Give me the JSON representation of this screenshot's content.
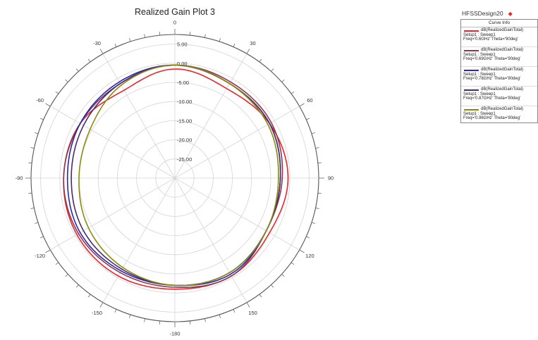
{
  "chart_data": {
    "type": "polar-line",
    "title": "Realized Gain Plot 3",
    "angle_ticks": [
      0,
      30,
      60,
      90,
      120,
      150,
      -180,
      -150,
      -120,
      -90,
      -60,
      -30
    ],
    "radial_range_db": [
      -30,
      7.5
    ],
    "radial_tick_labels": [
      "5.00",
      "0.00",
      "-5.00",
      "-10.00",
      "-15.00",
      "-20.00",
      "-25.00"
    ],
    "radial_tick_values": [
      5,
      0,
      -5,
      -10,
      -15,
      -20,
      -25
    ],
    "theta_sample_deg": [
      -180,
      -150,
      -120,
      -90,
      -60,
      -30,
      0,
      30,
      60,
      90,
      120,
      150
    ],
    "series": [
      {
        "name": "dB(RealizedGainTotal)",
        "setup": "Setup1 : Sweep1",
        "freq": "Freq='0.6GHz' Theta='90deg'",
        "color": "#e8262d",
        "values": [
          -1.0,
          -0.5,
          -0.5,
          -1.0,
          -1.5,
          -3.5,
          -1.5,
          -3.0,
          -1.5,
          -0.5,
          -1.5,
          -0.5
        ]
      },
      {
        "name": "dB(RealizedGainTotal)",
        "setup": "Setup1 : Sweep1",
        "freq": "Freq='0.69GHz' Theta='90deg'",
        "color": "#8e3a4c",
        "values": [
          -1.5,
          -1.5,
          -1.0,
          -1.0,
          -1.5,
          -1.5,
          -0.5,
          -1.0,
          -1.0,
          -2.0,
          -2.5,
          -0.5
        ]
      },
      {
        "name": "dB(RealizedGainTotal)",
        "setup": "Setup1 : Sweep1",
        "freq": "Freq='0.78GHz' Theta='90deg'",
        "color": "#2828b4",
        "values": [
          -2.0,
          -2.0,
          -1.5,
          -2.0,
          -1.5,
          -1.0,
          -0.5,
          -1.5,
          -1.5,
          -2.5,
          -2.5,
          -1.0
        ]
      },
      {
        "name": "dB(RealizedGainTotal)",
        "setup": "Setup1 : Sweep1",
        "freq": "Freq='0.87GHz' Theta='90deg'",
        "color": "#4b2b68",
        "values": [
          -2.0,
          -2.5,
          -2.5,
          -3.0,
          -2.5,
          -1.5,
          -0.5,
          -1.5,
          -1.5,
          -2.5,
          -2.5,
          -1.5
        ]
      },
      {
        "name": "dB(RealizedGainTotal)",
        "setup": "Setup1 : Sweep1",
        "freq": "Freq='0.96GHz' Theta='90deg'",
        "color": "#8a8a10",
        "values": [
          -2.0,
          -3.0,
          -4.0,
          -5.0,
          -4.5,
          -2.0,
          -0.5,
          -1.5,
          -2.0,
          -3.0,
          -2.5,
          -1.5
        ]
      }
    ]
  },
  "legend": {
    "design_name": "HFSSDesign20",
    "header": "Curve Info"
  }
}
